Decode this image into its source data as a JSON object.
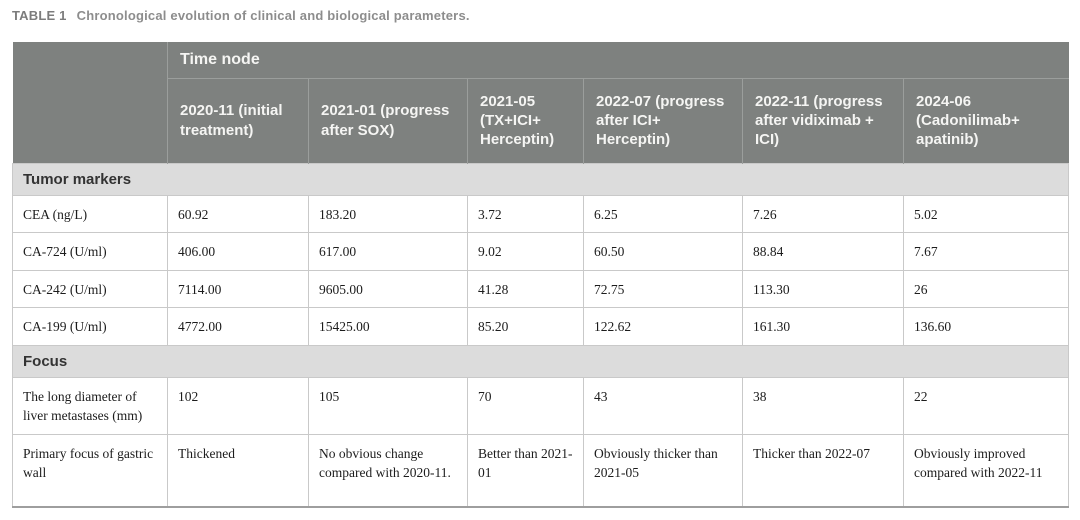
{
  "page": {
    "title_label": "TABLE 1",
    "title_text": "Chronological evolution of clinical and biological parameters."
  },
  "table": {
    "group_header": "Time node",
    "columns": [
      "2020-11 (initial treatment)",
      "2021-01 (progress after SOX)",
      "2021-05 (TX+ICI+ Herceptin)",
      "2022-07 (progress after ICI+ Herceptin)",
      "2022-11 (progress after vidiximab + ICI)",
      "2024-06 (Cadonilimab+ apatinib)"
    ],
    "sections": [
      {
        "name": "Tumor markers",
        "rows": [
          {
            "label": "CEA (ng/L)",
            "values": [
              "60.92",
              "183.20",
              "3.72",
              "6.25",
              "7.26",
              "5.02"
            ]
          },
          {
            "label": "CA-724 (U/ml)",
            "values": [
              "406.00",
              "617.00",
              "9.02",
              "60.50",
              "88.84",
              "7.67"
            ]
          },
          {
            "label": "CA-242 (U/ml)",
            "values": [
              "7114.00",
              "9605.00",
              "41.28",
              "72.75",
              "113.30",
              "26"
            ]
          },
          {
            "label": "CA-199 (U/ml)",
            "values": [
              "4772.00",
              "15425.00",
              "85.20",
              "122.62",
              "161.30",
              "136.60"
            ]
          }
        ]
      },
      {
        "name": "Focus",
        "rows": [
          {
            "label": "The long diameter of liver metastases (mm)",
            "values": [
              "102",
              "105",
              "70",
              "43",
              "38",
              "22"
            ]
          },
          {
            "label": "Primary focus of gastric wall",
            "values": [
              "Thickened",
              "No obvious change compared with 2020-11.",
              "Better than 2021-01",
              "Obviously thicker than 2021-05",
              "Thicker than 2022-07",
              "Obviously improved compared with 2022-11"
            ]
          }
        ]
      }
    ]
  },
  "colors": {
    "header_bg": "#7e817f",
    "header_divider": "#9b9e9c",
    "section_bg": "#dcdcdc",
    "body_border": "#c9c9c9",
    "caption_text": "#8d8d8d"
  }
}
